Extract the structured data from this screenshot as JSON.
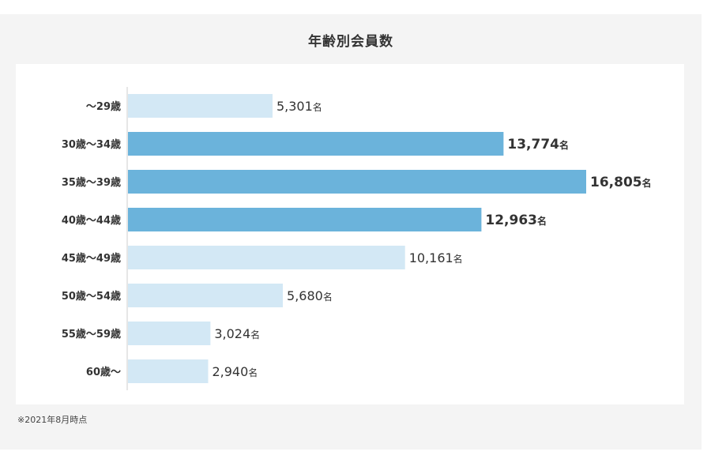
{
  "chart_data": {
    "type": "bar",
    "orientation": "horizontal",
    "title": "年齢別会員数",
    "categories": [
      "～29歳",
      "30歳～34歳",
      "35歳～39歳",
      "40歳～44歳",
      "45歳～49歳",
      "50歳～54歳",
      "55歳～59歳",
      "60歳～"
    ],
    "values": [
      5301,
      13774,
      16805,
      12963,
      10161,
      5680,
      3024,
      2940
    ],
    "value_labels": [
      "5,301",
      "13,774",
      "16,805",
      "12,963",
      "10,161",
      "5,680",
      "3,024",
      "2,940"
    ],
    "unit": "名",
    "highlighted": [
      false,
      true,
      true,
      true,
      false,
      false,
      false,
      false
    ],
    "colors": {
      "highlight": "#6bb3db",
      "normal": "#d3e8f5",
      "axis": "#cccccc",
      "text": "#333333"
    },
    "grid": false,
    "legend": "none"
  },
  "footnote": "※2021年8月時点"
}
